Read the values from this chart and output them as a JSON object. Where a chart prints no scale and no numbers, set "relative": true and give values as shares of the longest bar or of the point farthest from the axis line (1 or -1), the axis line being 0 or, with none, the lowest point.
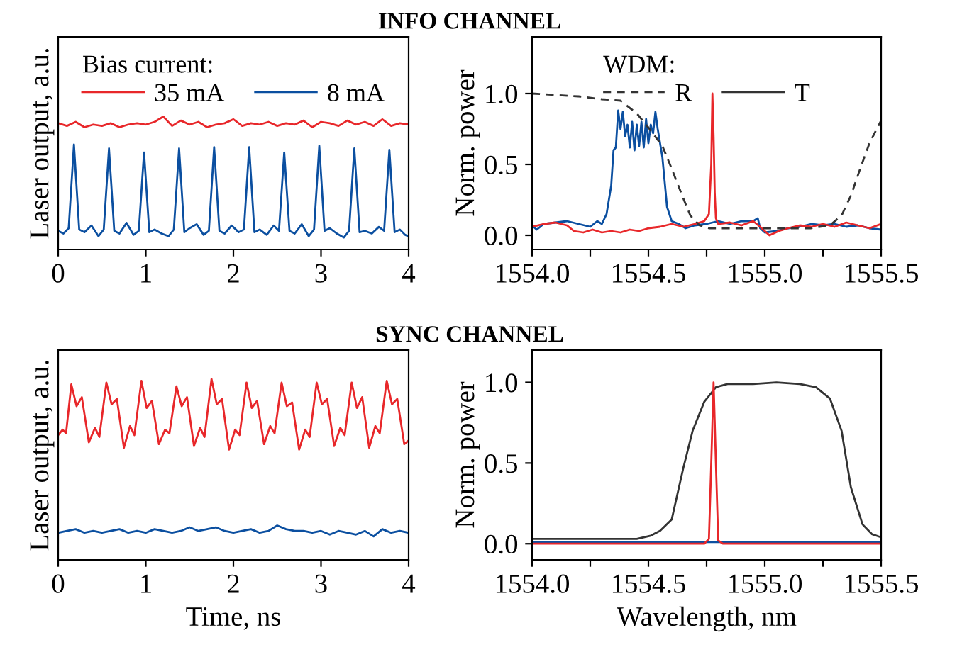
{
  "chart_data": [
    {
      "type": "line",
      "title": "INFO CHANNEL",
      "ylabel": "Laser output, a.u.",
      "relative": true,
      "tick_labels": "x",
      "xlim": [
        0,
        4
      ],
      "xticks": [
        0,
        1,
        2,
        3,
        4
      ],
      "grid": false,
      "legend": "top",
      "legend_title": "Bias current:",
      "series": [
        {
          "name": "35 mA",
          "color": "#e8272a",
          "x": [
            0,
            0.1,
            0.2,
            0.3,
            0.4,
            0.5,
            0.6,
            0.7,
            0.8,
            0.9,
            1.0,
            1.1,
            1.2,
            1.3,
            1.4,
            1.5,
            1.6,
            1.7,
            1.8,
            1.9,
            2.0,
            2.1,
            2.2,
            2.3,
            2.4,
            2.5,
            2.6,
            2.7,
            2.8,
            2.9,
            3.0,
            3.1,
            3.2,
            3.3,
            3.4,
            3.5,
            3.6,
            3.7,
            3.8,
            3.9,
            4.0
          ],
          "values": [
            0.95,
            0.93,
            0.96,
            0.92,
            0.94,
            0.93,
            0.95,
            0.92,
            0.94,
            0.95,
            0.94,
            0.96,
            1.0,
            0.93,
            0.97,
            0.94,
            0.96,
            0.92,
            0.94,
            0.95,
            0.98,
            0.93,
            0.95,
            0.94,
            0.96,
            0.93,
            0.95,
            0.94,
            0.97,
            0.92,
            0.96,
            0.95,
            0.93,
            0.97,
            0.94,
            0.96,
            0.93,
            0.98,
            0.93,
            0.95,
            0.94
          ]
        },
        {
          "name": "8 mA",
          "color": "#0b4fa0",
          "x": [
            0,
            0.06,
            0.12,
            0.18,
            0.24,
            0.3,
            0.38,
            0.46,
            0.52,
            0.58,
            0.64,
            0.7,
            0.78,
            0.86,
            0.92,
            0.98,
            1.04,
            1.1,
            1.18,
            1.26,
            1.32,
            1.38,
            1.44,
            1.5,
            1.58,
            1.66,
            1.72,
            1.78,
            1.84,
            1.9,
            1.98,
            2.06,
            2.12,
            2.18,
            2.24,
            2.3,
            2.38,
            2.46,
            2.52,
            2.58,
            2.64,
            2.7,
            2.78,
            2.86,
            2.92,
            2.98,
            3.04,
            3.1,
            3.18,
            3.26,
            3.32,
            3.38,
            3.44,
            3.5,
            3.58,
            3.66,
            3.72,
            3.78,
            3.84,
            3.9,
            3.96,
            4.0
          ],
          "values": [
            0.14,
            0.12,
            0.16,
            0.79,
            0.15,
            0.13,
            0.18,
            0.1,
            0.15,
            0.76,
            0.14,
            0.12,
            0.2,
            0.11,
            0.14,
            0.73,
            0.13,
            0.15,
            0.12,
            0.1,
            0.15,
            0.76,
            0.13,
            0.16,
            0.19,
            0.11,
            0.14,
            0.77,
            0.14,
            0.12,
            0.18,
            0.13,
            0.15,
            0.77,
            0.13,
            0.15,
            0.11,
            0.18,
            0.14,
            0.73,
            0.14,
            0.12,
            0.19,
            0.1,
            0.15,
            0.78,
            0.14,
            0.16,
            0.12,
            0.09,
            0.14,
            0.76,
            0.13,
            0.14,
            0.12,
            0.17,
            0.14,
            0.75,
            0.13,
            0.15,
            0.11,
            0.1
          ]
        }
      ]
    },
    {
      "type": "line",
      "ylabel": "Norm. power",
      "xlim": [
        1554.0,
        1555.5
      ],
      "xticks": [
        {
          "value": 1554.0,
          "label": "1554.0"
        },
        {
          "value": 1554.25,
          "label": null
        },
        {
          "value": 1554.5,
          "label": "1554.5"
        },
        {
          "value": 1554.75,
          "label": null
        },
        {
          "value": 1555.0,
          "label": "1555.0"
        },
        {
          "value": 1555.25,
          "label": null
        },
        {
          "value": 1555.5,
          "label": "1555.5"
        }
      ],
      "ylim": [
        -0.1,
        1.4
      ],
      "yticks": [
        {
          "value": 0,
          "label": "0.0"
        },
        {
          "value": 0.5,
          "label": "0.5"
        },
        {
          "value": 1,
          "label": "1.0"
        }
      ],
      "grid": false,
      "legend": "top",
      "legend_title": "WDM:",
      "series": [
        {
          "color": "#0b4fa0",
          "x": [
            1554.0,
            1554.02,
            1554.05,
            1554.1,
            1554.15,
            1554.2,
            1554.25,
            1554.28,
            1554.3,
            1554.32,
            1554.34,
            1554.35,
            1554.36,
            1554.37,
            1554.38,
            1554.39,
            1554.4,
            1554.41,
            1554.42,
            1554.43,
            1554.44,
            1554.45,
            1554.46,
            1554.47,
            1554.48,
            1554.49,
            1554.5,
            1554.51,
            1554.52,
            1554.53,
            1554.54,
            1554.56,
            1554.58,
            1554.6,
            1554.63,
            1554.66,
            1554.7,
            1554.75,
            1554.8,
            1554.85,
            1554.9,
            1554.95,
            1554.97,
            1554.98,
            1555.0,
            1555.05,
            1555.1,
            1555.15,
            1555.2,
            1555.25,
            1555.3,
            1555.35,
            1555.4,
            1555.45,
            1555.5
          ],
          "values": [
            0.07,
            0.04,
            0.08,
            0.09,
            0.1,
            0.08,
            0.06,
            0.1,
            0.08,
            0.15,
            0.35,
            0.6,
            0.62,
            0.88,
            0.75,
            0.87,
            0.7,
            0.78,
            0.62,
            0.8,
            0.6,
            0.78,
            0.63,
            0.8,
            0.62,
            0.82,
            0.65,
            0.78,
            0.72,
            0.87,
            0.75,
            0.55,
            0.2,
            0.1,
            0.08,
            0.05,
            0.07,
            0.08,
            0.1,
            0.08,
            0.1,
            0.1,
            0.12,
            0.05,
            0.02,
            0.03,
            0.05,
            0.06,
            0.08,
            0.07,
            0.08,
            0.06,
            0.07,
            0.05,
            0.04
          ]
        },
        {
          "color": "#e8272a",
          "x": [
            1554.0,
            1554.05,
            1554.1,
            1554.15,
            1554.18,
            1554.22,
            1554.26,
            1554.3,
            1554.34,
            1554.38,
            1554.42,
            1554.46,
            1554.5,
            1554.55,
            1554.6,
            1554.65,
            1554.7,
            1554.74,
            1554.76,
            1554.77,
            1554.775,
            1554.78,
            1554.785,
            1554.79,
            1554.8,
            1554.85,
            1554.9,
            1554.95,
            1554.98,
            1555.02,
            1555.06,
            1555.1,
            1555.15,
            1555.2,
            1555.25,
            1555.3,
            1555.35,
            1555.4,
            1555.45,
            1555.5
          ],
          "values": [
            0.06,
            0.08,
            0.09,
            0.07,
            0.03,
            0.02,
            0.04,
            0.02,
            0.03,
            0.02,
            0.04,
            0.03,
            0.05,
            0.06,
            0.08,
            0.06,
            0.08,
            0.1,
            0.15,
            0.5,
            1.0,
            0.7,
            0.3,
            0.12,
            0.08,
            0.09,
            0.07,
            0.1,
            0.06,
            0.0,
            0.03,
            0.05,
            0.07,
            0.06,
            0.08,
            0.06,
            0.09,
            0.07,
            0.05,
            0.08
          ]
        },
        {
          "name": "R",
          "color": "#333333",
          "line_style": "dashed",
          "x": [
            1554.0,
            1554.2,
            1554.3,
            1554.38,
            1554.45,
            1554.5,
            1554.56,
            1554.6,
            1554.65,
            1554.68,
            1554.72,
            1554.76,
            1554.8,
            1555.0,
            1555.2,
            1555.28,
            1555.33,
            1555.37,
            1555.41,
            1555.45,
            1555.5
          ],
          "values": [
            1.0,
            0.98,
            0.96,
            0.95,
            0.86,
            0.76,
            0.63,
            0.47,
            0.26,
            0.14,
            0.07,
            0.05,
            0.05,
            0.05,
            0.05,
            0.07,
            0.14,
            0.28,
            0.47,
            0.65,
            0.81
          ]
        }
      ]
    },
    {
      "type": "line",
      "title": "SYNC CHANNEL",
      "xlabel": "Time, ns",
      "ylabel": "Laser output, a.u.",
      "relative": true,
      "tick_labels": "x",
      "xlim": [
        0,
        4
      ],
      "xticks": [
        0,
        1,
        2,
        3,
        4
      ],
      "grid": false,
      "series": [
        {
          "color": "#e8272a",
          "x": [
            0,
            0.05,
            0.09,
            0.15,
            0.21,
            0.27,
            0.35,
            0.42,
            0.47,
            0.55,
            0.61,
            0.67,
            0.75,
            0.82,
            0.87,
            0.95,
            1.01,
            1.07,
            1.15,
            1.22,
            1.27,
            1.35,
            1.41,
            1.47,
            1.55,
            1.62,
            1.67,
            1.75,
            1.81,
            1.87,
            1.95,
            2.02,
            2.07,
            2.15,
            2.21,
            2.27,
            2.35,
            2.42,
            2.47,
            2.55,
            2.61,
            2.67,
            2.75,
            2.82,
            2.87,
            2.95,
            3.01,
            3.07,
            3.15,
            3.22,
            3.27,
            3.35,
            3.41,
            3.47,
            3.55,
            3.62,
            3.67,
            3.75,
            3.81,
            3.87,
            3.95,
            4.0
          ],
          "values": [
            0.69,
            0.72,
            0.7,
            0.97,
            0.85,
            0.9,
            0.65,
            0.73,
            0.68,
            0.98,
            0.86,
            0.89,
            0.62,
            0.74,
            0.69,
            0.99,
            0.84,
            0.88,
            0.64,
            0.72,
            0.7,
            0.96,
            0.85,
            0.9,
            0.63,
            0.73,
            0.68,
            1.0,
            0.86,
            0.89,
            0.61,
            0.72,
            0.69,
            0.98,
            0.84,
            0.88,
            0.64,
            0.74,
            0.7,
            0.98,
            0.85,
            0.87,
            0.61,
            0.72,
            0.68,
            0.98,
            0.86,
            0.89,
            0.63,
            0.73,
            0.69,
            0.98,
            0.84,
            0.9,
            0.62,
            0.74,
            0.7,
            0.99,
            0.86,
            0.89,
            0.64,
            0.66
          ]
        },
        {
          "color": "#0b4fa0",
          "x": [
            0,
            0.1,
            0.2,
            0.3,
            0.4,
            0.5,
            0.6,
            0.7,
            0.8,
            0.9,
            1.0,
            1.1,
            1.2,
            1.3,
            1.4,
            1.5,
            1.6,
            1.7,
            1.8,
            1.9,
            2.0,
            2.1,
            2.2,
            2.3,
            2.4,
            2.5,
            2.6,
            2.7,
            2.8,
            2.9,
            3.0,
            3.1,
            3.2,
            3.3,
            3.4,
            3.5,
            3.6,
            3.7,
            3.8,
            3.9,
            4.0
          ],
          "values": [
            0.15,
            0.16,
            0.17,
            0.15,
            0.16,
            0.15,
            0.16,
            0.17,
            0.15,
            0.16,
            0.15,
            0.17,
            0.16,
            0.15,
            0.16,
            0.18,
            0.16,
            0.17,
            0.18,
            0.16,
            0.15,
            0.16,
            0.17,
            0.15,
            0.16,
            0.19,
            0.17,
            0.16,
            0.16,
            0.15,
            0.16,
            0.14,
            0.16,
            0.15,
            0.14,
            0.16,
            0.13,
            0.17,
            0.15,
            0.16,
            0.15
          ]
        }
      ]
    },
    {
      "type": "line",
      "xlabel": "Wavelength, nm",
      "ylabel": "Norm. power",
      "xlim": [
        1554.0,
        1555.5
      ],
      "xticks": [
        {
          "value": 1554.0,
          "label": "1554.0"
        },
        {
          "value": 1554.25,
          "label": null
        },
        {
          "value": 1554.5,
          "label": "1554.5"
        },
        {
          "value": 1554.75,
          "label": null
        },
        {
          "value": 1555.0,
          "label": "1555.0"
        },
        {
          "value": 1555.25,
          "label": null
        },
        {
          "value": 1555.5,
          "label": "1555.5"
        }
      ],
      "ylim": [
        -0.1,
        1.2
      ],
      "yticks": [
        {
          "value": 0,
          "label": "0.0"
        },
        {
          "value": 0.5,
          "label": "0.5"
        },
        {
          "value": 1,
          "label": "1.0"
        }
      ],
      "grid": false,
      "legend": false,
      "series": [
        {
          "name": "T",
          "color": "#333333",
          "line_style": "solid",
          "x": [
            1554.0,
            1554.3,
            1554.45,
            1554.51,
            1554.55,
            1554.6,
            1554.65,
            1554.69,
            1554.74,
            1554.79,
            1554.84,
            1554.95,
            1555.05,
            1555.15,
            1555.22,
            1555.28,
            1555.33,
            1555.37,
            1555.42,
            1555.46,
            1555.5
          ],
          "values": [
            0.03,
            0.03,
            0.03,
            0.05,
            0.08,
            0.15,
            0.47,
            0.7,
            0.88,
            0.97,
            0.99,
            0.99,
            1.0,
            0.99,
            0.97,
            0.9,
            0.7,
            0.35,
            0.12,
            0.06,
            0.04
          ]
        },
        {
          "color": "#0b4fa0",
          "x": [
            1554.0,
            1555.5
          ],
          "values": [
            0.01,
            0.01
          ]
        },
        {
          "color": "#e8272a",
          "x": [
            1554.0,
            1554.74,
            1554.76,
            1554.77,
            1554.78,
            1554.79,
            1554.8,
            1554.82,
            1555.5
          ],
          "values": [
            0,
            0,
            0.03,
            0.5,
            1.0,
            0.5,
            0.02,
            0,
            0
          ]
        }
      ]
    }
  ]
}
